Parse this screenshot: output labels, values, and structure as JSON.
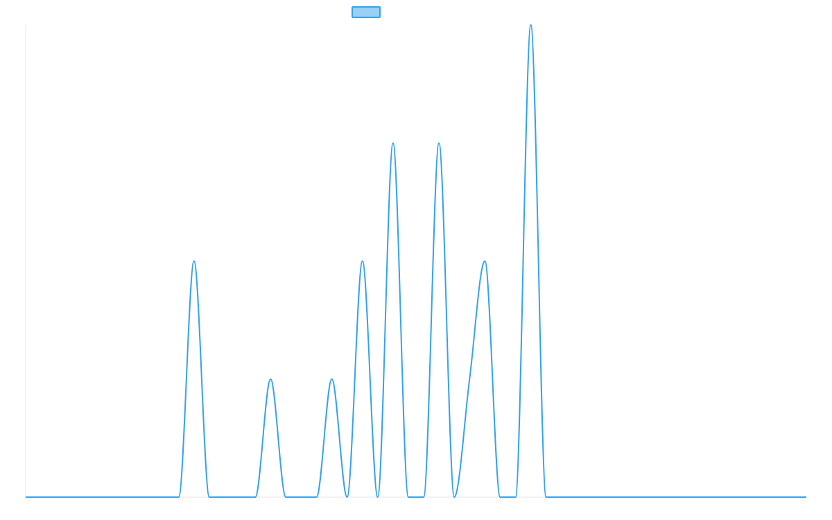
{
  "chart_data": {
    "type": "line",
    "title": "",
    "xlabel": "",
    "ylabel": "",
    "legend": {
      "placement": "top-center",
      "swatch_fill": "#9ad0f5",
      "swatch_stroke": "#36a2eb"
    },
    "grid": false,
    "line_color": "#36a2eb",
    "xlim": [
      0,
      51
    ],
    "ylim": [
      0,
      4
    ],
    "series": [
      {
        "x": [
          0,
          10,
          11,
          12,
          15,
          16,
          17,
          19,
          20,
          21,
          22,
          23,
          24,
          25,
          26,
          27,
          28,
          29,
          30,
          31,
          32,
          33,
          34,
          35,
          51
        ],
        "y": [
          0,
          0,
          2,
          0,
          0,
          1,
          0,
          0,
          1,
          0,
          2,
          0,
          3,
          0,
          0,
          3,
          0,
          1,
          2,
          0,
          0,
          4,
          0,
          0,
          0
        ]
      }
    ]
  }
}
